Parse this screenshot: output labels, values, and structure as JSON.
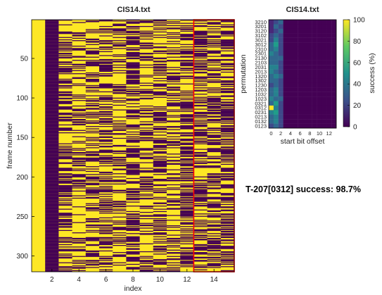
{
  "status_text": "T-207[0312] success: 98.7%",
  "colors": {
    "viridis_low": "#440154",
    "viridis_high": "#fde725",
    "highlight_border": "#ff0000"
  },
  "chart_data": [
    {
      "type": "heatmap",
      "title": "CIS14.txt",
      "xlabel": "index",
      "ylabel": "frame number",
      "xlim": [
        0.5,
        15.5
      ],
      "ylim": [
        1,
        320
      ],
      "y_reversed": true,
      "x_ticks": [
        2,
        4,
        6,
        8,
        10,
        12,
        14
      ],
      "y_ticks": [
        50,
        100,
        150,
        200,
        250,
        300
      ],
      "colormap": "viridis",
      "column_density_of_high_values": [
        1,
        0.0,
        0.55,
        0.72,
        0.58,
        0.5,
        0.62,
        0.45,
        0.6,
        0.5,
        0.62,
        0.45,
        0.55,
        0.5,
        0.45
      ],
      "highlight_box": {
        "x_range": [
          13,
          15
        ],
        "y_range": [
          1,
          320
        ],
        "color": "#ff0000"
      }
    },
    {
      "type": "heatmap",
      "title": "CIS14.txt",
      "xlabel": "start bit offset",
      "ylabel": "permutation",
      "colorbar_label": "success (%)",
      "colorbar_ticks": [
        0,
        20,
        40,
        60,
        80,
        100
      ],
      "x_ticks": [
        0,
        2,
        4,
        6,
        8,
        10,
        12
      ],
      "y_tick_labels": [
        "3210",
        "3201",
        "3120",
        "3102",
        "3021",
        "3012",
        "2310",
        "2301",
        "2130",
        "2103",
        "2031",
        "2013",
        "1320",
        "1302",
        "1230",
        "1203",
        "1032",
        "1023",
        "0321",
        "0312",
        "0231",
        "0213",
        "0132",
        "0123"
      ],
      "offsets": [
        0,
        1,
        2,
        3,
        4,
        5,
        6,
        7,
        8,
        9,
        10,
        11,
        12,
        13
      ],
      "values": [
        [
          10,
          25,
          35,
          3,
          2,
          3,
          2,
          3,
          2,
          3,
          2,
          3,
          2,
          3
        ],
        [
          12,
          30,
          25,
          3,
          2,
          3,
          2,
          3,
          2,
          3,
          2,
          3,
          2,
          3
        ],
        [
          15,
          20,
          30,
          3,
          2,
          3,
          2,
          3,
          2,
          3,
          2,
          3,
          2,
          3
        ],
        [
          20,
          35,
          20,
          3,
          2,
          3,
          2,
          3,
          2,
          3,
          2,
          3,
          2,
          3
        ],
        [
          25,
          40,
          25,
          3,
          2,
          3,
          2,
          3,
          2,
          3,
          2,
          3,
          2,
          3
        ],
        [
          30,
          50,
          20,
          3,
          2,
          3,
          2,
          3,
          2,
          3,
          2,
          3,
          2,
          3
        ],
        [
          35,
          45,
          25,
          3,
          2,
          3,
          2,
          3,
          2,
          3,
          2,
          3,
          2,
          3
        ],
        [
          40,
          30,
          20,
          3,
          2,
          3,
          2,
          3,
          2,
          3,
          2,
          3,
          2,
          3
        ],
        [
          30,
          35,
          30,
          3,
          2,
          3,
          2,
          3,
          2,
          3,
          2,
          3,
          2,
          3
        ],
        [
          35,
          30,
          25,
          3,
          2,
          3,
          2,
          3,
          2,
          3,
          2,
          3,
          2,
          3
        ],
        [
          45,
          40,
          20,
          3,
          2,
          3,
          2,
          3,
          2,
          3,
          2,
          3,
          2,
          3
        ],
        [
          40,
          35,
          25,
          3,
          2,
          3,
          2,
          3,
          2,
          3,
          2,
          3,
          2,
          3
        ],
        [
          30,
          40,
          30,
          3,
          2,
          3,
          2,
          3,
          2,
          3,
          2,
          3,
          2,
          3
        ],
        [
          35,
          35,
          20,
          3,
          2,
          3,
          2,
          3,
          2,
          3,
          2,
          3,
          2,
          3
        ],
        [
          25,
          30,
          25,
          3,
          2,
          3,
          2,
          3,
          2,
          3,
          2,
          3,
          2,
          3
        ],
        [
          30,
          45,
          20,
          3,
          2,
          3,
          2,
          3,
          2,
          3,
          2,
          3,
          2,
          3
        ],
        [
          35,
          40,
          25,
          3,
          2,
          3,
          2,
          3,
          2,
          3,
          2,
          3,
          2,
          3
        ],
        [
          40,
          35,
          30,
          3,
          2,
          3,
          2,
          3,
          2,
          3,
          2,
          3,
          2,
          3
        ],
        [
          35,
          50,
          25,
          3,
          2,
          3,
          2,
          3,
          2,
          3,
          2,
          3,
          2,
          3
        ],
        [
          98.7,
          45,
          20,
          3,
          2,
          3,
          2,
          3,
          2,
          3,
          2,
          3,
          2,
          3
        ],
        [
          40,
          55,
          25,
          3,
          2,
          3,
          2,
          3,
          2,
          3,
          2,
          3,
          2,
          3
        ],
        [
          35,
          45,
          20,
          3,
          2,
          3,
          2,
          3,
          2,
          3,
          2,
          3,
          2,
          3
        ],
        [
          30,
          40,
          25,
          3,
          2,
          3,
          2,
          3,
          2,
          3,
          2,
          3,
          2,
          3
        ],
        [
          25,
          35,
          20,
          3,
          2,
          3,
          2,
          3,
          2,
          3,
          2,
          3,
          2,
          3
        ]
      ]
    }
  ]
}
